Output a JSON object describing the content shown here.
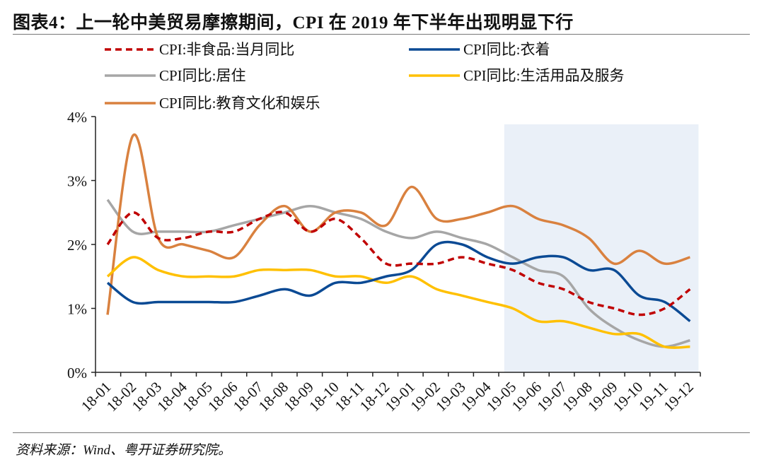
{
  "header": {
    "title": "图表4：上一轮中美贸易摩擦期间，CPI 在 2019 年下半年出现明显下行"
  },
  "footer": {
    "source": "资料来源：Wind、粤开证券研究院。"
  },
  "chart_data": {
    "type": "line",
    "title": "",
    "xlabel": "",
    "ylabel": "",
    "ylim": [
      0,
      4
    ],
    "yticks": [
      "0%",
      "1%",
      "2%",
      "3%",
      "4%"
    ],
    "grid": false,
    "legend": "top",
    "shaded_region": {
      "from": "19-05",
      "to": "19-12",
      "color": "#eaf0f8"
    },
    "categories": [
      "18-01",
      "18-02",
      "18-03",
      "18-04",
      "18-05",
      "18-06",
      "18-07",
      "18-08",
      "18-09",
      "18-10",
      "18-11",
      "18-12",
      "19-01",
      "19-02",
      "19-03",
      "19-04",
      "19-05",
      "19-06",
      "19-07",
      "19-08",
      "19-09",
      "19-10",
      "19-11",
      "19-12"
    ],
    "series": [
      {
        "name": "CPI:非食品:当月同比",
        "color": "#c00000",
        "dash": true,
        "values": [
          2.0,
          2.5,
          2.1,
          2.1,
          2.2,
          2.2,
          2.4,
          2.5,
          2.2,
          2.4,
          2.1,
          1.7,
          1.7,
          1.7,
          1.8,
          1.7,
          1.6,
          1.4,
          1.3,
          1.1,
          1.0,
          0.9,
          1.0,
          1.3
        ]
      },
      {
        "name": "CPI同比:衣着",
        "color": "#0b4a94",
        "dash": false,
        "values": [
          1.4,
          1.1,
          1.1,
          1.1,
          1.1,
          1.1,
          1.2,
          1.3,
          1.2,
          1.4,
          1.4,
          1.5,
          1.6,
          2.0,
          2.0,
          1.8,
          1.7,
          1.8,
          1.8,
          1.6,
          1.6,
          1.2,
          1.1,
          0.8
        ]
      },
      {
        "name": "CPI同比:居住",
        "color": "#a6a6a6",
        "dash": false,
        "values": [
          2.7,
          2.2,
          2.2,
          2.2,
          2.2,
          2.3,
          2.4,
          2.5,
          2.6,
          2.5,
          2.4,
          2.2,
          2.1,
          2.2,
          2.1,
          2.0,
          1.8,
          1.6,
          1.5,
          1.0,
          0.7,
          0.5,
          0.4,
          0.5
        ]
      },
      {
        "name": "CPI同比:生活用品及服务",
        "color": "#ffc000",
        "dash": false,
        "values": [
          1.5,
          1.8,
          1.6,
          1.5,
          1.5,
          1.5,
          1.6,
          1.6,
          1.6,
          1.5,
          1.5,
          1.4,
          1.5,
          1.3,
          1.2,
          1.1,
          1.0,
          0.8,
          0.8,
          0.7,
          0.6,
          0.6,
          0.4,
          0.4
        ]
      },
      {
        "name": "CPI同比:教育文化和娱乐",
        "color": "#d9813f",
        "dash": false,
        "values": [
          0.9,
          3.7,
          2.1,
          2.0,
          1.9,
          1.8,
          2.3,
          2.6,
          2.2,
          2.5,
          2.5,
          2.3,
          2.9,
          2.4,
          2.4,
          2.5,
          2.6,
          2.4,
          2.3,
          2.1,
          1.7,
          1.9,
          1.7,
          1.8
        ]
      }
    ]
  }
}
